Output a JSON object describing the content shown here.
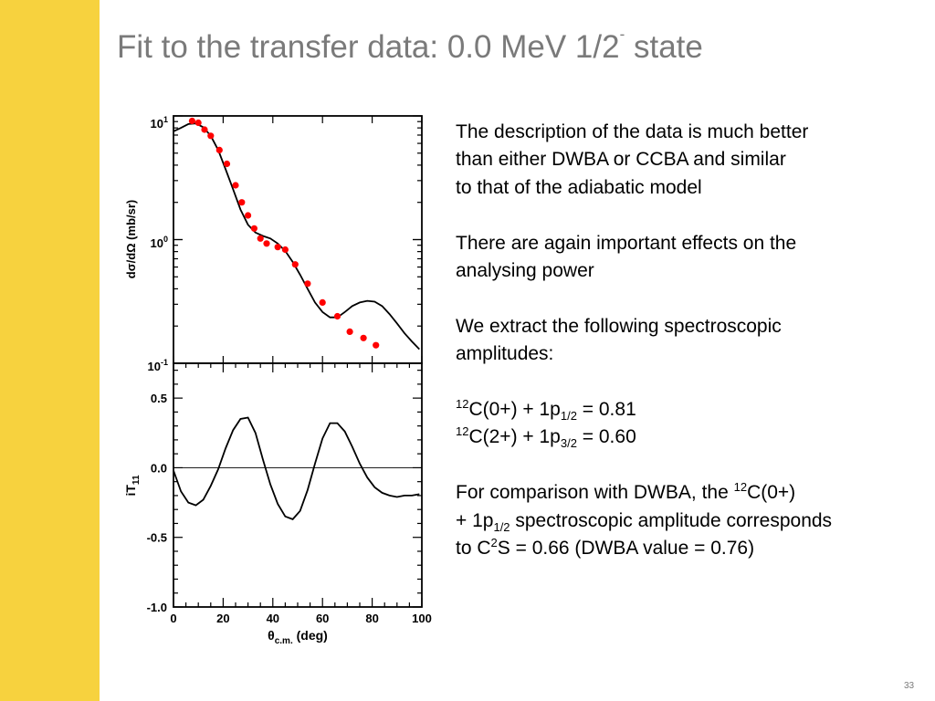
{
  "slide": {
    "title_main": "Fit to the transfer data: 0.0 MeV 1/2",
    "title_sup": "-",
    "title_end": " state",
    "accent_color": "#f7d23e",
    "page_number": "33"
  },
  "body": {
    "para1": [
      "The description of the data is much better",
      "than either DWBA or CCBA and similar",
      "to that of the adiabatic model"
    ],
    "para2": [
      "There are again important effects on the",
      "analysing power"
    ],
    "para3": [
      "We extract the following spectroscopic",
      "amplitudes:"
    ],
    "amp1": {
      "sup": "12",
      "text": "C(0+) + 1p",
      "sub": "1/2",
      "value": " = 0.81"
    },
    "amp2": {
      "sup": "12",
      "text": "C(2+) + 1p",
      "sub": "3/2",
      "value": " = 0.60"
    },
    "comparison": {
      "l1_text": "For comparison with DWBA, the ",
      "l1_sup": "12",
      "l1_end": "C(0+)",
      "l2_text": "+ 1p",
      "l2_sub": "1/2",
      "l2_end": " spectroscopic amplitude corresponds",
      "l3_text": "to C",
      "l3_sup": "2",
      "l3_end": "S = 0.66 (DWBA value = 0.76)"
    }
  },
  "chart_data": [
    {
      "type": "line",
      "ylabel": "dσ/dΩ (mb/sr)",
      "yscale": "log",
      "ylim": [
        0.1,
        10
      ],
      "xlim": [
        0,
        100
      ],
      "y_ticklabels": [
        {
          "base": "10",
          "exp": "1",
          "value": 10
        },
        {
          "base": "10",
          "exp": "0",
          "value": 1
        },
        {
          "base": "10",
          "exp": "-1",
          "value": 0.1
        }
      ],
      "data_points": {
        "color": "#ff0000",
        "x": [
          7.5,
          10,
          12.5,
          15,
          18.5,
          21.5,
          25,
          27.5,
          30,
          32.5,
          35,
          37.5,
          42,
          45,
          49,
          54,
          60,
          66,
          71,
          76.5,
          81.5
        ],
        "y": [
          9.1,
          8.8,
          7.75,
          6.9,
          5.3,
          4.1,
          2.75,
          2.0,
          1.57,
          1.23,
          1.02,
          0.93,
          0.87,
          0.83,
          0.63,
          0.44,
          0.31,
          0.24,
          0.18,
          0.16,
          0.14
        ]
      },
      "fit_curve": {
        "color": "#000000",
        "x": [
          0,
          3,
          6,
          9,
          12,
          15,
          18,
          21,
          24,
          27,
          30,
          33,
          36,
          39,
          42,
          45,
          48,
          51,
          54,
          57,
          60,
          63,
          66,
          69,
          72,
          75,
          78,
          81,
          84,
          87,
          90,
          93,
          96,
          99
        ],
        "y": [
          7.5,
          8.0,
          8.6,
          8.7,
          8.1,
          6.9,
          5.3,
          3.7,
          2.55,
          1.75,
          1.32,
          1.14,
          1.07,
          1.02,
          0.93,
          0.81,
          0.66,
          0.52,
          0.4,
          0.31,
          0.26,
          0.235,
          0.235,
          0.26,
          0.29,
          0.31,
          0.32,
          0.315,
          0.29,
          0.25,
          0.21,
          0.175,
          0.15,
          0.13
        ]
      }
    },
    {
      "type": "line",
      "ylabel_main": "iT",
      "ylabel_sub": "11",
      "xlabel_main": "θ",
      "xlabel_sub": "c.m.",
      "xlabel_end": " (deg)",
      "xlim": [
        0,
        100
      ],
      "ylim": [
        -1.0,
        0.75
      ],
      "x_ticklabels": [
        "0",
        "20",
        "40",
        "60",
        "80",
        "100"
      ],
      "x_tickvalues": [
        0,
        20,
        40,
        60,
        80,
        100
      ],
      "y_ticklabels": [
        "0.5",
        "0.0",
        "-0.5",
        "-1.0"
      ],
      "y_tickvalues": [
        0.5,
        0.0,
        -0.5,
        -1.0
      ],
      "zero_line": 0.0,
      "fit_curve": {
        "color": "#000000",
        "x": [
          0,
          3,
          6,
          9,
          12,
          15,
          18,
          21,
          24,
          27,
          30,
          33,
          36,
          39,
          42,
          45,
          48,
          51,
          54,
          57,
          60,
          63,
          66,
          69,
          72,
          75,
          78,
          81,
          84,
          87,
          90,
          93,
          96,
          99
        ],
        "y": [
          -0.02,
          -0.17,
          -0.25,
          -0.27,
          -0.23,
          -0.13,
          -0.01,
          0.14,
          0.27,
          0.35,
          0.36,
          0.25,
          0.06,
          -0.12,
          -0.26,
          -0.35,
          -0.37,
          -0.31,
          -0.16,
          0.03,
          0.21,
          0.32,
          0.32,
          0.26,
          0.15,
          0.03,
          -0.07,
          -0.14,
          -0.18,
          -0.2,
          -0.21,
          -0.2,
          -0.2,
          -0.19
        ]
      }
    }
  ]
}
